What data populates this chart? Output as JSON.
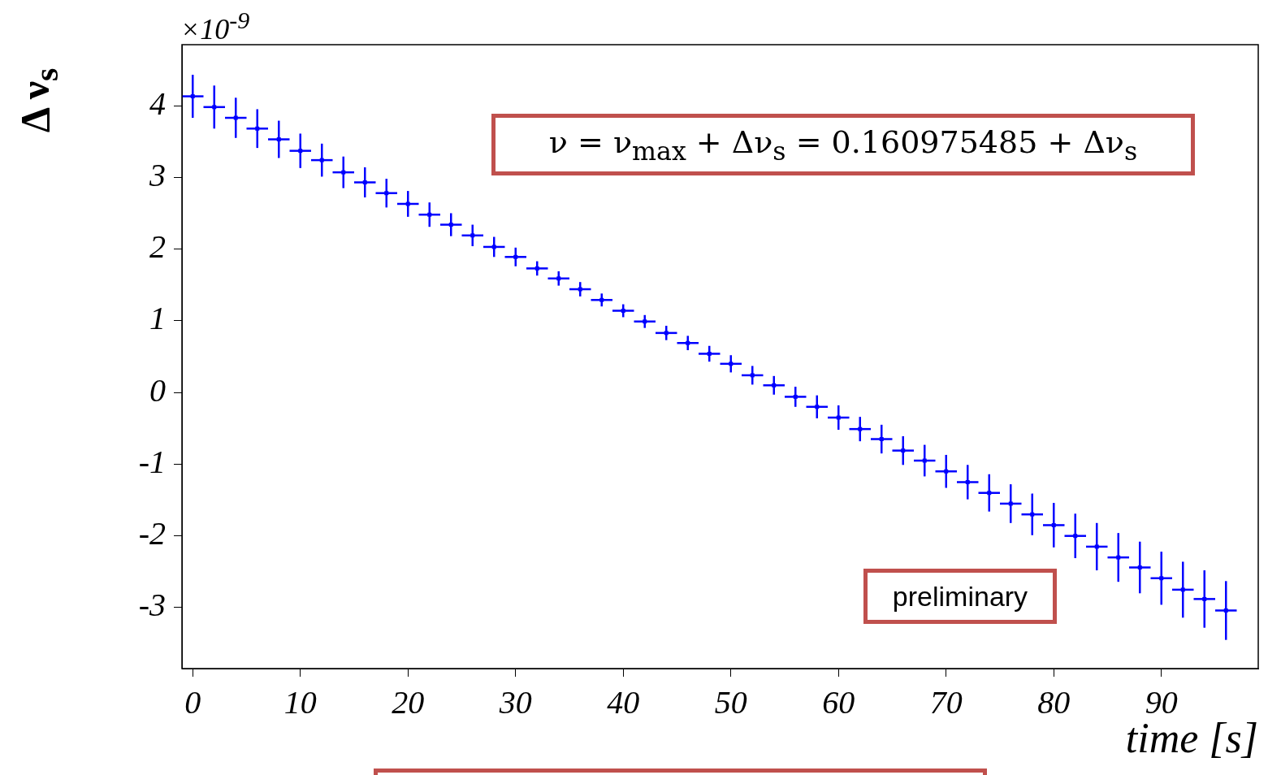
{
  "chart_data": {
    "type": "scatter",
    "xlabel": "time [s]",
    "ylabel": "Δ ν$_{s}$",
    "annotations": [
      "×10$^{-9}$",
      "ν = ν$_{max}$ + Δν$_{s}$ = 0.160975485 + Δν$_{s}$",
      "preliminary"
    ],
    "x": [
      0,
      2,
      4,
      6,
      8,
      10,
      12,
      14,
      16,
      18,
      20,
      22,
      24,
      26,
      28,
      30,
      32,
      34,
      36,
      38,
      40,
      42,
      44,
      46,
      48,
      50,
      52,
      54,
      56,
      58,
      60,
      62,
      64,
      66,
      68,
      70,
      72,
      74,
      76,
      78,
      80,
      82,
      84,
      86,
      88,
      90,
      92,
      94,
      96
    ],
    "series": [
      {
        "color": "#0000ff",
        "values": [
          4.13,
          3.98,
          3.83,
          3.68,
          3.53,
          3.37,
          3.24,
          3.07,
          2.93,
          2.78,
          2.63,
          2.48,
          2.34,
          2.19,
          2.03,
          1.89,
          1.73,
          1.59,
          1.44,
          1.29,
          1.14,
          0.99,
          0.83,
          0.69,
          0.54,
          0.4,
          0.24,
          0.1,
          -0.06,
          -0.2,
          -0.35,
          -0.51,
          -0.65,
          -0.81,
          -0.95,
          -1.1,
          -1.25,
          -1.4,
          -1.55,
          -1.7,
          -1.85,
          -2.0,
          -2.15,
          -2.3,
          -2.44,
          -2.59,
          -2.75,
          -2.88,
          -3.04
        ],
        "errors": [
          0.3,
          0.3,
          0.28,
          0.27,
          0.26,
          0.24,
          0.23,
          0.22,
          0.21,
          0.2,
          0.18,
          0.17,
          0.16,
          0.15,
          0.14,
          0.13,
          0.1,
          0.1,
          0.1,
          0.09,
          0.09,
          0.09,
          0.1,
          0.1,
          0.11,
          0.12,
          0.13,
          0.13,
          0.14,
          0.16,
          0.17,
          0.17,
          0.2,
          0.2,
          0.22,
          0.23,
          0.24,
          0.26,
          0.27,
          0.29,
          0.31,
          0.31,
          0.33,
          0.34,
          0.36,
          0.37,
          0.39,
          0.4,
          0.41
        ],
        "xerrors": [
          1,
          1,
          1,
          1,
          1,
          1,
          1,
          1,
          1,
          1,
          1,
          1,
          1,
          1,
          1,
          1,
          1,
          1,
          1,
          1,
          1,
          1,
          1,
          1,
          1,
          1,
          1,
          1,
          1,
          1,
          1,
          1,
          1,
          1,
          1,
          1,
          1,
          1,
          1,
          1,
          1,
          1,
          1,
          1,
          1,
          1,
          1,
          1,
          1
        ]
      }
    ],
    "marker": "square",
    "xlim": [
      -1,
      99
    ],
    "ylim": [
      -3.85,
      4.85
    ],
    "xticks": [
      0,
      10,
      20,
      30,
      40,
      50,
      60,
      70,
      80,
      90
    ],
    "yticks": [
      -3,
      -2,
      -1,
      0,
      1,
      2,
      3,
      4
    ],
    "grid": false
  }
}
